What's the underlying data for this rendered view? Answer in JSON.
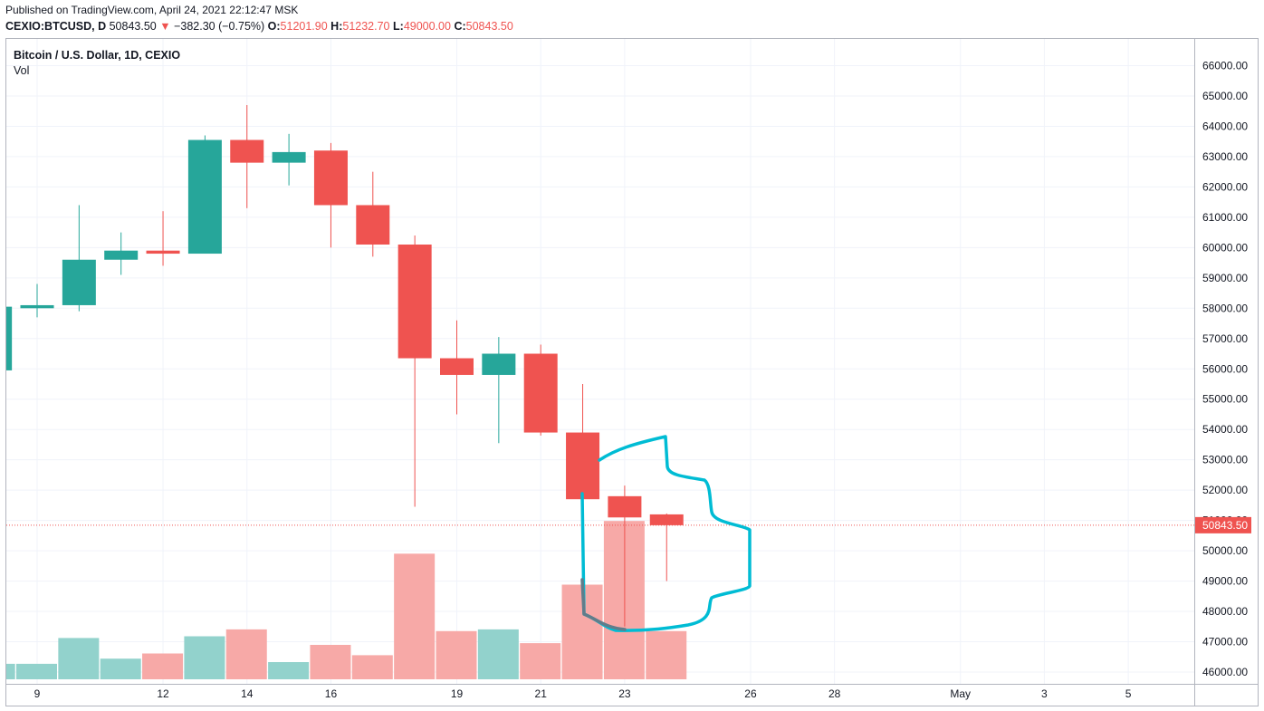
{
  "header": {
    "published": "Published on TradingView.com, April 24, 2021 22:12:47 MSK",
    "symbol": "CEXIO:BTCUSD, D",
    "last": "50843.50",
    "arrow": "▼",
    "change": "−382.30 (−0.75%)",
    "o_label": "O:",
    "o_value": "51201.90",
    "h_label": "H:",
    "h_value": "51232.70",
    "l_label": "L:",
    "l_value": "49000.00",
    "c_label": "C:",
    "c_value": "50843.50"
  },
  "legend": {
    "title": "Bitcoin / U.S. Dollar, 1D, CEXIO",
    "vol": "Vol"
  },
  "colors": {
    "up": "#26a69a",
    "down": "#ef5350",
    "vol_up": "#92d2cc",
    "vol_down": "#f7a9a7",
    "grid": "#f0f3fa",
    "annotation": "#00bcd4",
    "annotation_dark": "#607d8b",
    "price_label_bg": "#ef5350"
  },
  "chart_data": {
    "type": "candlestick",
    "title": "Bitcoin / U.S. Dollar, 1D, CEXIO",
    "ylim": [
      45800,
      66500
    ],
    "y_ticks": [
      "46000.00",
      "47000.00",
      "48000.00",
      "49000.00",
      "50000.00",
      "51000.00",
      "52000.00",
      "53000.00",
      "54000.00",
      "55000.00",
      "56000.00",
      "57000.00",
      "58000.00",
      "59000.00",
      "60000.00",
      "61000.00",
      "62000.00",
      "63000.00",
      "64000.00",
      "65000.00",
      "66000.00"
    ],
    "x_ticks": [
      {
        "label": "9",
        "day": 9
      },
      {
        "label": "12",
        "day": 12
      },
      {
        "label": "14",
        "day": 14
      },
      {
        "label": "16",
        "day": 16
      },
      {
        "label": "19",
        "day": 19
      },
      {
        "label": "21",
        "day": 21
      },
      {
        "label": "23",
        "day": 23
      },
      {
        "label": "26",
        "day": 26
      },
      {
        "label": "28",
        "day": 28
      },
      {
        "label": "May",
        "day": 31
      },
      {
        "label": "3",
        "day": 33
      },
      {
        "label": "5",
        "day": 35
      }
    ],
    "last_price": "50843.50",
    "last_price_value": 50843.5,
    "candles": [
      {
        "day": 8,
        "o": 55950,
        "h": 58100,
        "l": 55900,
        "c": 58050,
        "vol": 0.09
      },
      {
        "day": 9,
        "o": 58000,
        "h": 58800,
        "l": 57700,
        "c": 58100,
        "vol": 0.09
      },
      {
        "day": 10,
        "o": 58100,
        "h": 61400,
        "l": 57900,
        "c": 59600,
        "vol": 0.24
      },
      {
        "day": 11,
        "o": 59600,
        "h": 60500,
        "l": 59100,
        "c": 59900,
        "vol": 0.12
      },
      {
        "day": 12,
        "o": 59900,
        "h": 61200,
        "l": 59400,
        "c": 59800,
        "vol": 0.15
      },
      {
        "day": 13,
        "o": 59800,
        "h": 63700,
        "l": 59800,
        "c": 63550,
        "vol": 0.25
      },
      {
        "day": 14,
        "o": 63550,
        "h": 64700,
        "l": 61300,
        "c": 62800,
        "vol": 0.29
      },
      {
        "day": 15,
        "o": 62800,
        "h": 63750,
        "l": 62050,
        "c": 63150,
        "vol": 0.1
      },
      {
        "day": 16,
        "o": 63200,
        "h": 63450,
        "l": 60000,
        "c": 61400,
        "vol": 0.2
      },
      {
        "day": 17,
        "o": 61400,
        "h": 62500,
        "l": 59700,
        "c": 60100,
        "vol": 0.14
      },
      {
        "day": 18,
        "o": 60100,
        "h": 60400,
        "l": 51450,
        "c": 56350,
        "vol": 0.73
      },
      {
        "day": 19,
        "o": 56350,
        "h": 57600,
        "l": 54500,
        "c": 55800,
        "vol": 0.28
      },
      {
        "day": 20,
        "o": 55800,
        "h": 57050,
        "l": 53550,
        "c": 56500,
        "vol": 0.29
      },
      {
        "day": 21,
        "o": 56500,
        "h": 56800,
        "l": 53800,
        "c": 53900,
        "vol": 0.21
      },
      {
        "day": 22,
        "o": 53900,
        "h": 55500,
        "l": 50500,
        "c": 51700,
        "vol": 0.55
      },
      {
        "day": 23,
        "o": 51800,
        "h": 52150,
        "l": 47500,
        "c": 51100,
        "vol": 0.92
      },
      {
        "day": 24,
        "o": 51200,
        "h": 51230,
        "l": 49000,
        "c": 50843,
        "vol": 0.28
      }
    ]
  }
}
